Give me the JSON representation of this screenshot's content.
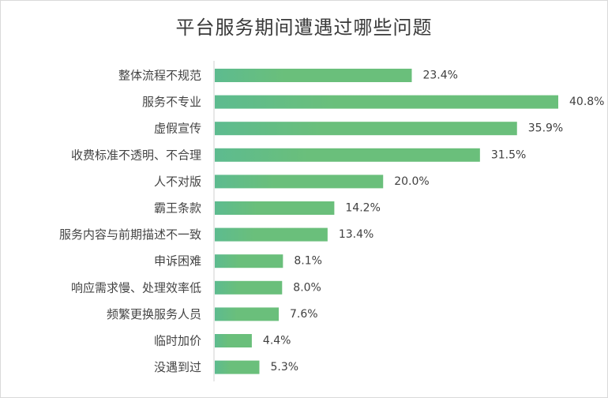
{
  "chart_data": {
    "type": "bar",
    "orientation": "horizontal",
    "title": "平台服务期间遭遇过哪些问题",
    "categories": [
      "整体流程不规范",
      "服务不专业",
      "虚假宣传",
      "收费标准不透明、不合理",
      "人不对版",
      "霸王条款",
      "服务内容与前期描述不一致",
      "申诉困难",
      "响应需求慢、处理效率低",
      "频繁更换服务人员",
      "临时加价",
      "没遇到过"
    ],
    "values": [
      23.4,
      40.8,
      35.9,
      31.5,
      20.0,
      14.2,
      13.4,
      8.1,
      8.0,
      7.6,
      4.4,
      5.3
    ],
    "value_labels": [
      "23.4%",
      "40.8%",
      "35.9%",
      "31.5%",
      "20.0%",
      "14.2%",
      "13.4%",
      "8.1%",
      "8.0%",
      "7.6%",
      "4.4%",
      "5.3%"
    ],
    "xlim": [
      0,
      45
    ],
    "grid": false,
    "legend": "none",
    "colors": {
      "bar": "#6abf7b",
      "bar_start": "#5dbb8f",
      "axis": "#d0d0d0"
    }
  }
}
